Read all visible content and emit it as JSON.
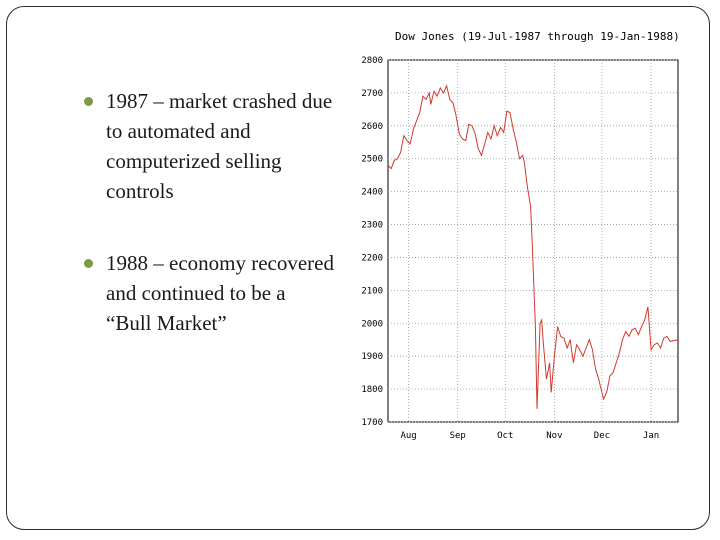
{
  "slide": {
    "bullets": [
      "1987 – market crashed due to automated and computerized selling controls",
      "1988 – economy recovered and continued to be a “Bull Market”"
    ],
    "bullet_color": "#7e9a45"
  },
  "chart_data": {
    "type": "line",
    "title": "Dow Jones (19-Jul-1987 through 19-Jan-1988)",
    "xlabel": "",
    "ylabel": "",
    "ylim": [
      1700,
      2800
    ],
    "yticks": [
      1700,
      1800,
      1900,
      2000,
      2100,
      2200,
      2300,
      2400,
      2500,
      2600,
      2700,
      2800
    ],
    "xtick_labels": [
      "Aug",
      "Sep",
      "Oct",
      "Nov",
      "Dec",
      "Jan"
    ],
    "xtick_day_index": [
      13,
      44,
      74,
      105,
      135,
      166
    ],
    "grid": true,
    "line_color": "#d03a2e",
    "series": [
      {
        "values": [
          [
            0,
            2480
          ],
          [
            2,
            2470
          ],
          [
            4,
            2495
          ],
          [
            6,
            2500
          ],
          [
            8,
            2520
          ],
          [
            10,
            2570
          ],
          [
            12,
            2555
          ],
          [
            14,
            2545
          ],
          [
            16,
            2590
          ],
          [
            18,
            2615
          ],
          [
            20,
            2640
          ],
          [
            22,
            2690
          ],
          [
            24,
            2680
          ],
          [
            26,
            2700
          ],
          [
            27,
            2665
          ],
          [
            29,
            2705
          ],
          [
            31,
            2690
          ],
          [
            33,
            2715
          ],
          [
            35,
            2700
          ],
          [
            37,
            2722
          ],
          [
            39,
            2680
          ],
          [
            41,
            2670
          ],
          [
            43,
            2630
          ],
          [
            45,
            2575
          ],
          [
            47,
            2560
          ],
          [
            49,
            2555
          ],
          [
            51,
            2605
          ],
          [
            53,
            2600
          ],
          [
            55,
            2575
          ],
          [
            57,
            2530
          ],
          [
            59,
            2510
          ],
          [
            61,
            2545
          ],
          [
            63,
            2580
          ],
          [
            65,
            2560
          ],
          [
            67,
            2600
          ],
          [
            69,
            2570
          ],
          [
            71,
            2595
          ],
          [
            73,
            2580
          ],
          [
            75,
            2645
          ],
          [
            77,
            2640
          ],
          [
            79,
            2590
          ],
          [
            81,
            2550
          ],
          [
            83,
            2500
          ],
          [
            85,
            2510
          ],
          [
            86,
            2490
          ],
          [
            88,
            2412
          ],
          [
            90,
            2355
          ],
          [
            91,
            2246
          ],
          [
            93,
            1990
          ],
          [
            94,
            1740
          ],
          [
            96,
            2000
          ],
          [
            97,
            2010
          ],
          [
            98,
            1940
          ],
          [
            100,
            1830
          ],
          [
            102,
            1880
          ],
          [
            103,
            1790
          ],
          [
            105,
            1900
          ],
          [
            107,
            1990
          ],
          [
            109,
            1960
          ],
          [
            111,
            1955
          ],
          [
            113,
            1925
          ],
          [
            115,
            1950
          ],
          [
            117,
            1880
          ],
          [
            119,
            1935
          ],
          [
            121,
            1920
          ],
          [
            123,
            1900
          ],
          [
            125,
            1925
          ],
          [
            127,
            1950
          ],
          [
            129,
            1920
          ],
          [
            131,
            1860
          ],
          [
            133,
            1830
          ],
          [
            134,
            1810
          ],
          [
            136,
            1770
          ],
          [
            138,
            1790
          ],
          [
            140,
            1840
          ],
          [
            142,
            1850
          ],
          [
            144,
            1880
          ],
          [
            146,
            1910
          ],
          [
            148,
            1950
          ],
          [
            150,
            1975
          ],
          [
            152,
            1960
          ],
          [
            154,
            1980
          ],
          [
            156,
            1985
          ],
          [
            158,
            1965
          ],
          [
            160,
            1990
          ],
          [
            162,
            2010
          ],
          [
            164,
            2050
          ],
          [
            166,
            1920
          ],
          [
            168,
            1935
          ],
          [
            170,
            1940
          ],
          [
            172,
            1925
          ],
          [
            174,
            1955
          ],
          [
            176,
            1960
          ],
          [
            178,
            1945
          ],
          [
            183,
            1950
          ]
        ]
      }
    ]
  }
}
